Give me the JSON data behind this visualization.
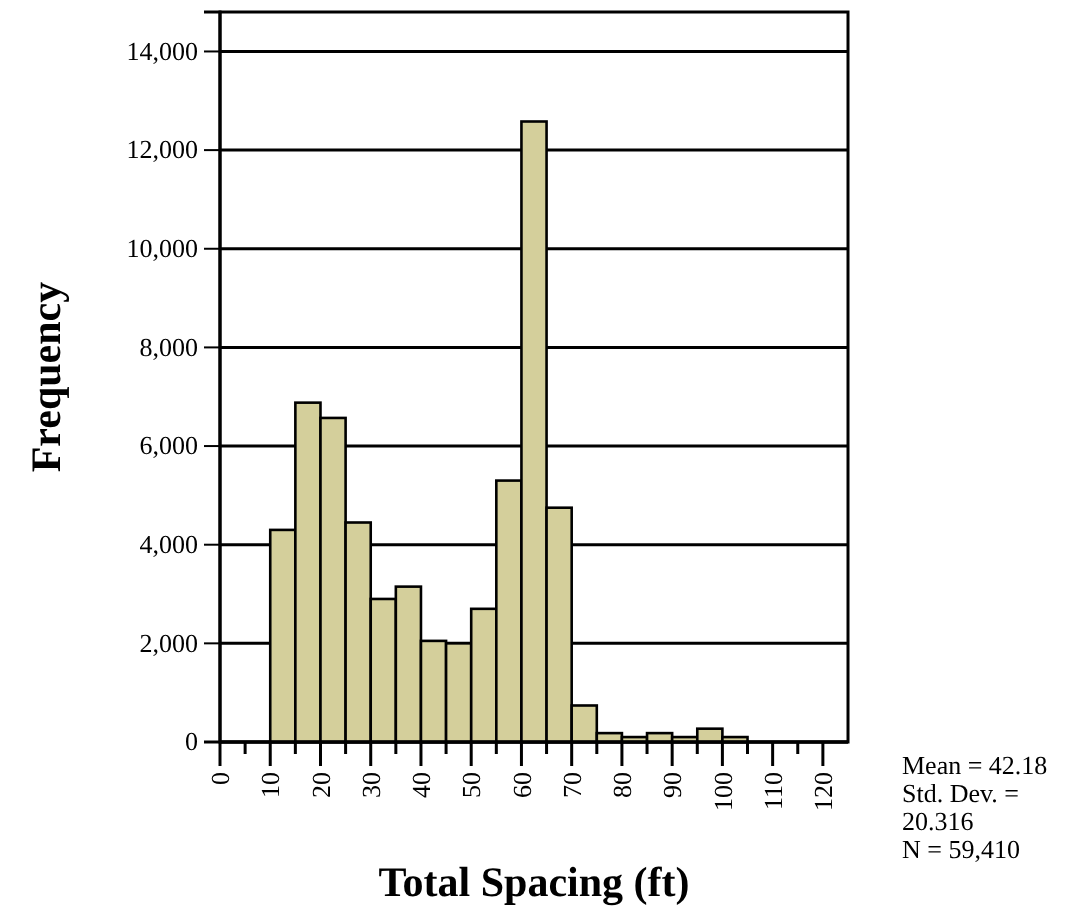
{
  "chart_data": {
    "type": "histogram",
    "xlabel": "Total Spacing (ft)",
    "ylabel": "Frequency",
    "bins": [
      0,
      5,
      10,
      15,
      20,
      25,
      30,
      35,
      40,
      45,
      50,
      55,
      60,
      65,
      70,
      75,
      80,
      85,
      90,
      95,
      100,
      105,
      110,
      115,
      120,
      125
    ],
    "values": [
      0,
      0,
      4300,
      6880,
      6570,
      4450,
      2900,
      3150,
      2050,
      2000,
      2700,
      5300,
      12580,
      4750,
      740,
      180,
      100,
      180,
      100,
      270,
      100,
      0,
      0,
      0,
      0
    ],
    "color": "#d4cf9b",
    "xlim": [
      0,
      125
    ],
    "xticks": [
      0,
      {
        "value": 5,
        "label": null
      },
      10,
      {
        "value": 15,
        "label": null
      },
      20,
      {
        "value": 25,
        "label": null
      },
      30,
      {
        "value": 35,
        "label": null
      },
      40,
      {
        "value": 45,
        "label": null
      },
      50,
      {
        "value": 55,
        "label": null
      },
      60,
      {
        "value": 65,
        "label": null
      },
      70,
      {
        "value": 75,
        "label": null
      },
      80,
      {
        "value": 85,
        "label": null
      },
      90,
      {
        "value": 95,
        "label": null
      },
      100,
      {
        "value": 105,
        "label": null
      },
      110,
      {
        "value": 115,
        "label": null
      },
      120
    ],
    "ylim": [
      0,
      14800
    ],
    "yticks": [
      {
        "value": 0,
        "label": "0"
      },
      {
        "value": 2000,
        "label": "2,000"
      },
      {
        "value": 4000,
        "label": "4,000"
      },
      {
        "value": 6000,
        "label": "6,000"
      },
      {
        "value": 8000,
        "label": "8,000"
      },
      {
        "value": 10000,
        "label": "10,000"
      },
      {
        "value": 12000,
        "label": "12,000"
      },
      {
        "value": 14000,
        "label": "14,000"
      }
    ],
    "grid": "y",
    "annotations": [
      "Mean = 42.18",
      "Std. Dev. = 20.316",
      "N = 59,410"
    ]
  }
}
